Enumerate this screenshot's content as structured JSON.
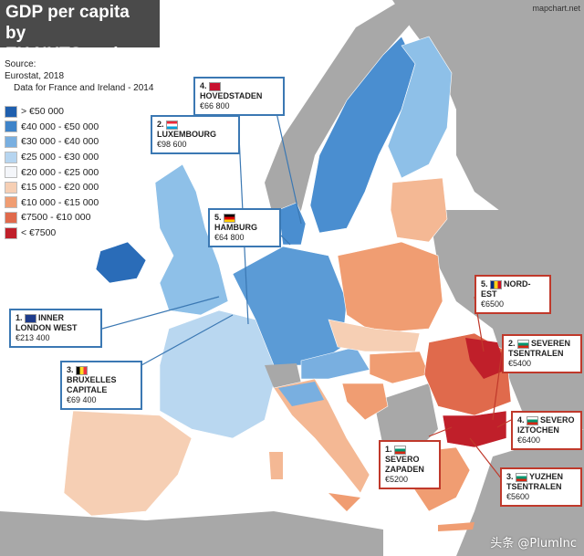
{
  "title": {
    "line1": "GDP per capita by",
    "line2": "EU NUTS region"
  },
  "brand": "mapchart.net",
  "source": {
    "line1": "Source:",
    "line2": "Eurostat, 2018",
    "line3": "Data for France and Ireland - 2014"
  },
  "legend": [
    {
      "label": "> €50 000",
      "color": "#1f5fae"
    },
    {
      "label": "€40 000 - €50 000",
      "color": "#3f84c9"
    },
    {
      "label": "€30 000 - €40 000",
      "color": "#79afe0"
    },
    {
      "label": "€25 000 - €30 000",
      "color": "#b6d5f0"
    },
    {
      "label": "€20 000 - €25 000",
      "color": "#f4f6fa"
    },
    {
      "label": "€15 000 - €20 000",
      "color": "#f6cfb4"
    },
    {
      "label": "€10 000 - €15 000",
      "color": "#f09d72"
    },
    {
      "label": "€7500 - €10 000",
      "color": "#e06a4c"
    },
    {
      "label": "< €7500",
      "color": "#c01f2a"
    }
  ],
  "callouts": [
    {
      "rank": "4.",
      "name": "HOVEDSTADEN",
      "value": "€66 800",
      "country": "Denmark"
    },
    {
      "rank": "2.",
      "name": "LUXEMBOURG",
      "value": "€98 600",
      "country": "Luxembourg"
    },
    {
      "rank": "5.",
      "name": "HAMBURG",
      "value": "€64 800",
      "country": "Germany"
    },
    {
      "rank": "1.",
      "name": "INNER LONDON WEST",
      "value": "€213 400",
      "country": "United Kingdom"
    },
    {
      "rank": "3.",
      "name": "BRUXELLES CAPITALE",
      "value": "€69 400",
      "country": "Belgium"
    },
    {
      "rank": "5.",
      "name": "NORD-EST",
      "value": "€6500",
      "country": "Romania"
    },
    {
      "rank": "2.",
      "name": "SEVEREN TSENTRALEN",
      "value": "€5400",
      "country": "Bulgaria"
    },
    {
      "rank": "4.",
      "name": "SEVERO IZTOCHEN",
      "value": "€6400",
      "country": "Bulgaria"
    },
    {
      "rank": "1.",
      "name": "SEVERO ZAPADEN",
      "value": "€5200",
      "country": "Bulgaria"
    },
    {
      "rank": "3.",
      "name": "YUZHEN TSENTRALEN",
      "value": "€5600",
      "country": "Bulgaria"
    }
  ],
  "watermark": "头条 @PlumInc",
  "colors": {
    "sea": "#ffffff",
    "non_eu": "#a8a8a8",
    "blue_border": "#3b78b3",
    "red_border": "#c0392b"
  }
}
